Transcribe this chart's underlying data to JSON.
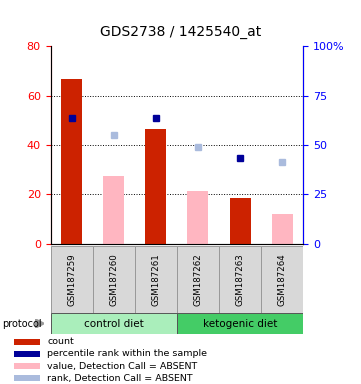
{
  "title": "GDS2738 / 1425540_at",
  "samples": [
    "GSM187259",
    "GSM187260",
    "GSM187261",
    "GSM187262",
    "GSM187263",
    "GSM187264"
  ],
  "count_values": [
    66.5,
    null,
    46.5,
    null,
    18.5,
    null
  ],
  "absent_value_bars": [
    null,
    27.5,
    null,
    21.5,
    null,
    12.0
  ],
  "percentile_present": [
    63.5,
    null,
    63.5,
    null,
    43.5,
    null
  ],
  "percentile_absent": [
    null,
    55.0,
    null,
    49.0,
    null,
    41.5
  ],
  "left_ylim": [
    0,
    80
  ],
  "right_ylim": [
    0,
    100
  ],
  "left_yticks": [
    0,
    20,
    40,
    60,
    80
  ],
  "right_yticks": [
    0,
    25,
    50,
    75,
    100
  ],
  "right_yticklabels": [
    "0",
    "25",
    "50",
    "75",
    "100%"
  ],
  "bar_color_present": "#CC2200",
  "bar_color_absent": "#FFB6C1",
  "dot_color_present": "#000099",
  "dot_color_absent": "#AABBDD",
  "gridlines": [
    20,
    40,
    60
  ],
  "ctrl_color": "#AAEEBB",
  "keto_color": "#44CC66",
  "legend_items": [
    {
      "label": "count",
      "color": "#CC2200"
    },
    {
      "label": "percentile rank within the sample",
      "color": "#000099"
    },
    {
      "label": "value, Detection Call = ABSENT",
      "color": "#FFB6C1"
    },
    {
      "label": "rank, Detection Call = ABSENT",
      "color": "#AABBDD"
    }
  ]
}
